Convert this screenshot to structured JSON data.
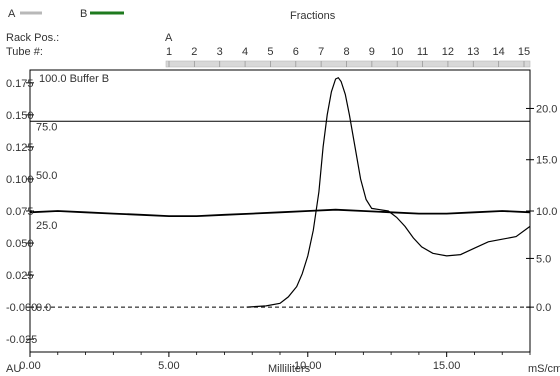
{
  "chart_data": {
    "type": "line",
    "title": "Fractions",
    "xlabel": "Milliliters",
    "ylabel_left_unit": "AU",
    "ylabel_right_unit": "mS/cm",
    "legend": [
      {
        "name": "A",
        "color": "#b8b8b8"
      },
      {
        "name": "B",
        "color": "#1e7a1e"
      }
    ],
    "header": {
      "rack_label": "Rack Pos.:",
      "tube_label": "Tube #:",
      "rack_value": "A",
      "tubes": [
        "1",
        "2",
        "3",
        "4",
        "5",
        "6",
        "7",
        "8",
        "9",
        "10",
        "11",
        "12",
        "13",
        "14",
        "15"
      ]
    },
    "x_ticks": [
      "0.00",
      "5.00",
      "10.00",
      "15.00"
    ],
    "xlim": [
      0,
      18
    ],
    "y_left_ticks": [
      "0.175",
      "0.150",
      "0.125",
      "0.100",
      "0.075",
      "0.050",
      "0.025",
      "-0.000",
      "-0.025"
    ],
    "ylim_left": [
      -0.035,
      0.185
    ],
    "y_buffer_label": "100.0 Buffer B",
    "y_buffer_ticks": [
      "75.0",
      "50.0",
      "25.0",
      "0.0"
    ],
    "y_right_ticks": [
      "20.0",
      "15.0",
      "10.0",
      "5.0",
      "0.0"
    ],
    "series": [
      {
        "name": "A",
        "color": "#000000",
        "x": [
          7.8,
          8.5,
          9.0,
          9.3,
          9.6,
          9.8,
          10.0,
          10.2,
          10.4,
          10.55,
          10.7,
          10.85,
          11.0,
          11.1,
          11.2,
          11.35,
          11.5,
          11.7,
          11.9,
          12.1,
          12.3,
          12.6,
          12.9,
          13.2,
          13.5,
          13.8,
          14.1,
          14.5,
          15.0,
          15.5,
          16.0,
          16.5,
          17.0,
          17.5,
          18.0
        ],
        "y": [
          0.0,
          0.001,
          0.003,
          0.008,
          0.016,
          0.026,
          0.04,
          0.06,
          0.09,
          0.125,
          0.15,
          0.168,
          0.178,
          0.179,
          0.176,
          0.166,
          0.15,
          0.125,
          0.1,
          0.084,
          0.077,
          0.076,
          0.075,
          0.07,
          0.063,
          0.054,
          0.047,
          0.042,
          0.04,
          0.041,
          0.046,
          0.051,
          0.053,
          0.055,
          0.063
        ]
      },
      {
        "name": "Conductivity",
        "color": "#000000",
        "x": [
          0,
          1,
          2,
          3,
          4,
          5,
          6,
          7,
          8,
          9,
          10,
          11,
          12,
          13,
          14,
          15,
          16,
          17,
          18
        ],
        "y": [
          0.074,
          0.075,
          0.074,
          0.073,
          0.072,
          0.071,
          0.071,
          0.072,
          0.073,
          0.074,
          0.075,
          0.076,
          0.075,
          0.074,
          0.073,
          0.073,
          0.074,
          0.075,
          0.074
        ]
      }
    ],
    "reference_lines": [
      {
        "axis": "y",
        "value": 0.145,
        "style": "solid"
      },
      {
        "axis": "y",
        "value": 0.0,
        "style": "dashed"
      }
    ]
  }
}
